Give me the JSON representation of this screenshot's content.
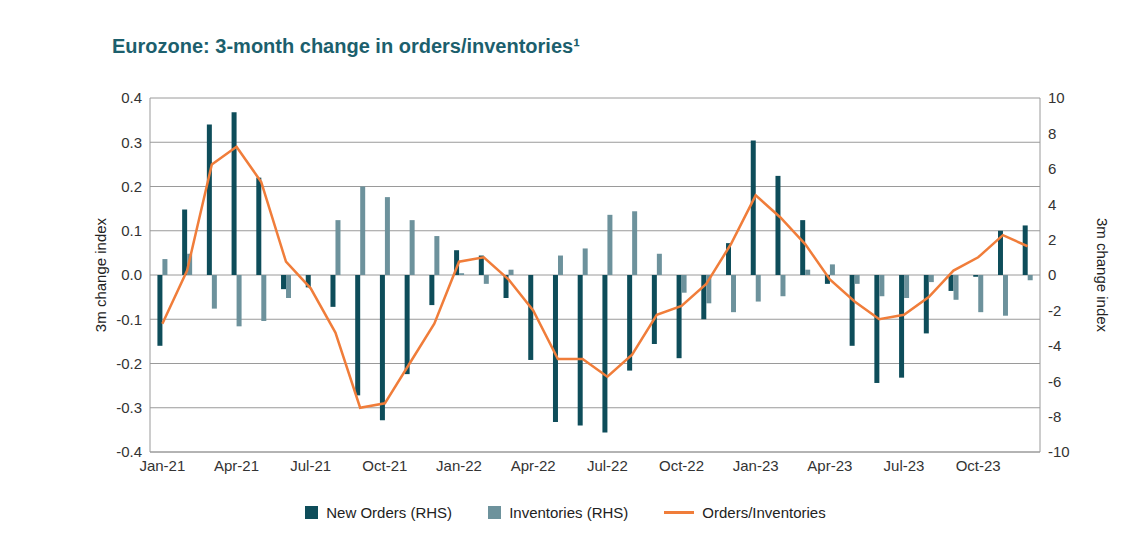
{
  "chart_data": {
    "type": "bar",
    "title": "Eurozone: 3-month change in orders/inventories¹",
    "ylabel": "3m change index",
    "y2label": "3m change index",
    "categories": [
      "Jan-21",
      null,
      null,
      "Apr-21",
      null,
      null,
      "Jul-21",
      null,
      null,
      "Oct-21",
      null,
      null,
      "Jan-22",
      null,
      null,
      "Apr-22",
      null,
      null,
      "Jul-22",
      null,
      null,
      "Oct-22",
      null,
      null,
      "Jan-23",
      null,
      null,
      "Apr-23",
      null,
      null,
      "Jul-23",
      null,
      null,
      "Oct-23",
      null,
      null
    ],
    "series": [
      {
        "name": "New Orders (RHS)",
        "type": "bar",
        "axis": "y2",
        "color": "#0e4d5a",
        "values": [
          -4.0,
          3.7,
          8.5,
          9.2,
          5.5,
          -0.8,
          -0.7,
          -1.8,
          -6.8,
          -8.2,
          -5.6,
          -1.7,
          1.4,
          1.1,
          -1.3,
          -4.8,
          -8.3,
          -8.5,
          -8.9,
          -5.4,
          -3.9,
          -4.7,
          -2.5,
          1.8,
          7.6,
          5.6,
          3.1,
          -0.5,
          -4.0,
          -6.1,
          -5.8,
          -3.3,
          -0.9,
          -0.1,
          2.5,
          2.8
        ]
      },
      {
        "name": "Inventories (RHS)",
        "type": "bar",
        "axis": "y2",
        "color": "#6d929c",
        "values": [
          0.9,
          1.2,
          -1.9,
          -2.9,
          -2.6,
          -1.3,
          0,
          3.1,
          5.0,
          4.4,
          3.1,
          2.2,
          0.1,
          -0.5,
          0.3,
          0,
          1.1,
          1.5,
          3.4,
          3.6,
          1.2,
          -1.0,
          -1.6,
          -2.1,
          -1.5,
          -1.2,
          0.3,
          0.6,
          -0.5,
          -1.2,
          -1.3,
          -0.4,
          -1.4,
          -2.1,
          -2.3,
          -0.3
        ]
      },
      {
        "name": "Orders/Inventories",
        "type": "line",
        "axis": "y",
        "color": "#f07d3a",
        "values": [
          -0.11,
          0.01,
          0.25,
          0.29,
          0.21,
          0.03,
          -0.03,
          -0.13,
          -0.3,
          -0.29,
          -0.2,
          -0.11,
          0.03,
          0.04,
          -0.01,
          -0.08,
          -0.19,
          -0.19,
          -0.23,
          -0.18,
          -0.09,
          -0.07,
          -0.02,
          0.07,
          0.18,
          0.13,
          0.07,
          -0.01,
          -0.06,
          -0.1,
          -0.09,
          -0.05,
          0.01,
          0.04,
          0.09,
          0.065
        ]
      }
    ],
    "ylim": [
      -0.4,
      0.4
    ],
    "yticks": [
      0.4,
      0.3,
      0.2,
      0.1,
      {
        "value": 0,
        "label": "0.0"
      },
      -0.1,
      -0.2,
      -0.3,
      -0.4
    ],
    "y2lim": [
      -10,
      10
    ],
    "y2ticks": [
      10,
      8,
      6,
      4,
      2,
      0,
      -2,
      -4,
      -6,
      -8,
      -10
    ],
    "grid": true,
    "legend": "bottom"
  }
}
